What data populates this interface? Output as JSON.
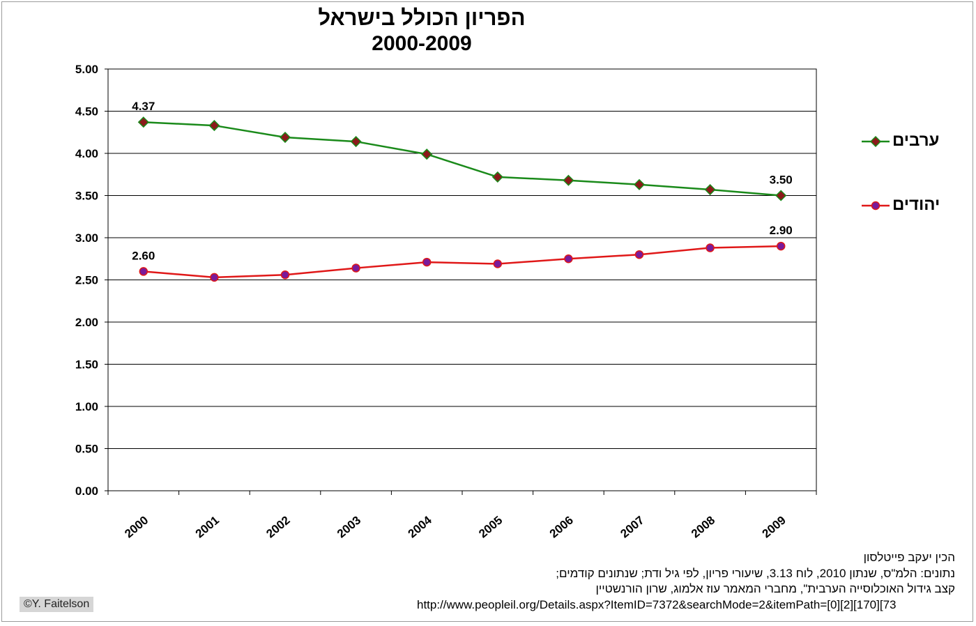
{
  "chart_data": {
    "type": "line",
    "title": "הפריון הכולל בישראל",
    "subtitle": "2000-2009",
    "xlabel": "",
    "ylabel": "",
    "categories": [
      "2000",
      "2001",
      "2002",
      "2003",
      "2004",
      "2005",
      "2006",
      "2007",
      "2008",
      "2009"
    ],
    "ylim": [
      0,
      5
    ],
    "yticks": [
      "0.00",
      "0.50",
      "1.00",
      "1.50",
      "2.00",
      "2.50",
      "3.00",
      "3.50",
      "4.00",
      "4.50",
      "5.00"
    ],
    "grid": true,
    "legend_position": "right",
    "series": [
      {
        "name": "ערבים",
        "values": [
          4.37,
          4.33,
          4.19,
          4.14,
          3.99,
          3.72,
          3.68,
          3.63,
          3.57,
          3.5
        ],
        "color": "#1a8a1a",
        "marker": "diamond",
        "marker_color": "#8b1a1a",
        "data_labels": [
          "4.37",
          "",
          "",
          "",
          "",
          "",
          "",
          "",
          "",
          "3.50"
        ]
      },
      {
        "name": "יהודים",
        "values": [
          2.6,
          2.53,
          2.56,
          2.64,
          2.71,
          2.69,
          2.75,
          2.8,
          2.88,
          2.9
        ],
        "color": "#e01818",
        "marker": "circle",
        "marker_color": "#7a1a9a",
        "data_labels": [
          "2.60",
          "",
          "",
          "",
          "",
          "",
          "",
          "",
          "",
          "2.90"
        ]
      }
    ]
  },
  "notes": {
    "line1": "הכין יעקב פייטלסון",
    "line2": "נתונים: הלמ\"ס, שנתון 2010, לוח 3.13, שיעורי פריון, לפי גיל ודת;  שנתונים קודמים;",
    "line3": "קצב גידול האוכלוסייה הערבית\", מחברי המאמר עוז אלמוג, שרון הורנשטיין",
    "url": "http://www.peopleil.org/Details.aspx?ItemID=7372&searchMode=2&itemPath=[0][2][170][73"
  },
  "copyright": "©Y. Faitelson"
}
